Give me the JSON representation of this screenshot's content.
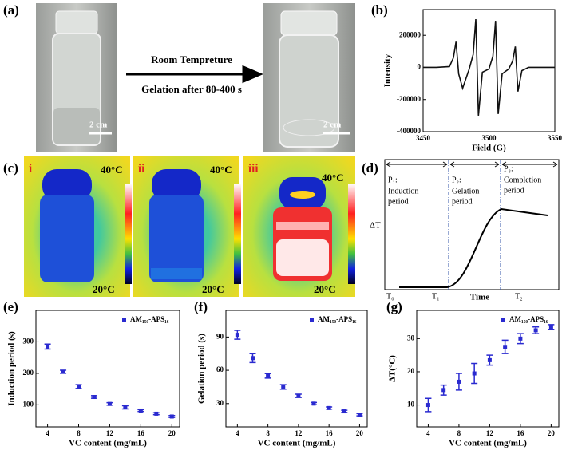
{
  "panels": {
    "a": {
      "label": "(a)",
      "arrow_text": [
        "Room Tempreture",
        "Gelation after 80-400 s"
      ],
      "scale": [
        "2 cm",
        "2 cm"
      ]
    },
    "c": {
      "label": "(c)",
      "images": [
        {
          "label": "i",
          "high": "40°C",
          "low": "20°C"
        },
        {
          "label": "ii",
          "high": "40°C",
          "low": "20°C"
        },
        {
          "label": "iii",
          "high": "40°C",
          "low": "20°C"
        }
      ]
    },
    "d": {
      "label": "(d)",
      "phases": [
        {
          "name": "P₁:",
          "desc": [
            "Induction",
            "period"
          ]
        },
        {
          "name": "P₂:",
          "desc": [
            "Gelation",
            "period"
          ]
        },
        {
          "name": "P₃:",
          "desc": [
            "Completion",
            "period"
          ]
        }
      ],
      "ylabel": "ΔT",
      "xlabel": "Time",
      "times": [
        "T₀",
        "T₁",
        "T₂"
      ]
    }
  },
  "chart_data": [
    {
      "type": "line",
      "panel": "(b)",
      "xlabel": "Field (G)",
      "ylabel": "Intensity",
      "x": [
        3450,
        3460,
        3470,
        3473,
        3475,
        3477,
        3480,
        3485,
        3488,
        3490,
        3492,
        3495,
        3500,
        3503,
        3505,
        3507,
        3510,
        3515,
        3518,
        3520,
        3522,
        3525,
        3530,
        3540,
        3550
      ],
      "series": [
        {
          "color": "#111111",
          "values": [
            0,
            0,
            5000,
            60000,
            160000,
            -40000,
            -130000,
            -10000,
            80000,
            300000,
            -300000,
            -30000,
            -10000,
            70000,
            290000,
            -290000,
            -40000,
            -10000,
            40000,
            130000,
            -150000,
            -20000,
            0,
            0,
            0
          ]
        }
      ],
      "xlim": [
        3450,
        3550
      ],
      "xticks": [
        3450,
        3500,
        3550
      ],
      "ylim": [
        -400000,
        360000
      ],
      "yticks": [
        -400000,
        -200000,
        0,
        200000
      ]
    },
    {
      "type": "errorbar",
      "panel": "(e)",
      "xlabel": "VC content (mg/mL)",
      "ylabel": "Induction period (s)",
      "x": [
        4,
        6,
        8,
        10,
        12,
        14,
        16,
        18,
        20
      ],
      "series": [
        {
          "name": "AM₁₅₀-APS₁₆",
          "color": "#2a2ad0",
          "values": [
            285,
            205,
            158,
            125,
            103,
            92,
            82,
            72,
            63
          ],
          "errors": [
            8,
            5,
            6,
            4,
            4,
            5,
            3,
            3,
            3
          ]
        }
      ],
      "xlim": [
        2.5,
        21
      ],
      "xticks": [
        4,
        8,
        12,
        16,
        20
      ],
      "ylim": [
        30,
        400
      ],
      "yticks": [
        100,
        200,
        300
      ]
    },
    {
      "type": "errorbar",
      "panel": "(f)",
      "xlabel": "VC content (mg/mL)",
      "ylabel": "Gelation period (s)",
      "x": [
        4,
        6,
        8,
        10,
        12,
        14,
        16,
        18,
        20
      ],
      "series": [
        {
          "name": "AM₁₅₀-APS₁₆",
          "color": "#2a2ad0",
          "values": [
            92,
            71,
            55,
            45,
            37,
            30,
            26,
            23,
            20
          ],
          "errors": [
            4,
            4,
            2,
            2,
            1.5,
            1,
            1,
            1,
            1
          ]
        }
      ],
      "xlim": [
        2.5,
        21
      ],
      "xticks": [
        4,
        8,
        12,
        16,
        20
      ],
      "ylim": [
        9,
        114
      ],
      "yticks": [
        30,
        60,
        90
      ]
    },
    {
      "type": "errorbar",
      "panel": "(g)",
      "xlabel": "VC content (mg/mL)",
      "ylabel": "ΔT(°C)",
      "x": [
        4,
        6,
        8,
        10,
        12,
        14,
        16,
        18,
        20
      ],
      "series": [
        {
          "name": "AM₁₅₀-APS₁₆",
          "color": "#2a2ad0",
          "values": [
            10,
            14.5,
            17,
            19.5,
            23.5,
            27.5,
            30,
            32.5,
            33.5
          ],
          "errors": [
            2,
            1.5,
            2.5,
            3,
            1.5,
            2,
            1.5,
            1,
            0.7
          ]
        }
      ],
      "xlim": [
        2.5,
        21
      ],
      "xticks": [
        4,
        8,
        12,
        16,
        20
      ],
      "ylim": [
        3.4,
        38.5
      ],
      "yticks": [
        10,
        20,
        30
      ]
    }
  ]
}
